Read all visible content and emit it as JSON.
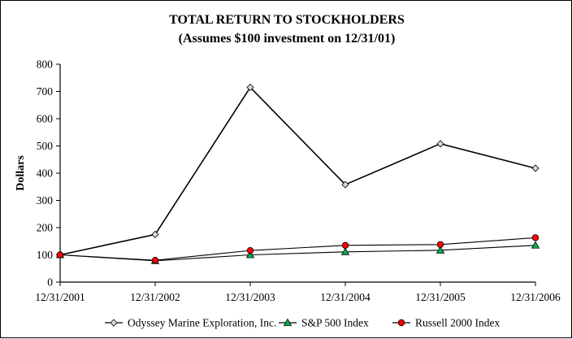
{
  "chart_data": {
    "type": "line",
    "title": "TOTAL RETURN TO STOCKHOLDERS",
    "subtitle": "(Assumes $100 investment on 12/31/01)",
    "xlabel": "",
    "ylabel": "Dollars",
    "categories": [
      "12/31/2001",
      "12/31/2002",
      "12/31/2003",
      "12/31/2004",
      "12/31/2005",
      "12/31/2006"
    ],
    "ylim": [
      0,
      800
    ],
    "yticks": [
      0,
      100,
      200,
      300,
      400,
      500,
      600,
      700,
      800
    ],
    "grid": false,
    "legend_position": "bottom",
    "series": [
      {
        "name": "Odyssey Marine Exploration, Inc.",
        "values": [
          100,
          175,
          715,
          358,
          508,
          418
        ],
        "color": "#000000",
        "marker": "diamond",
        "marker_fill": "#d9d9d9"
      },
      {
        "name": "S&P 500 Index",
        "values": [
          100,
          78,
          100,
          111,
          117,
          135
        ],
        "color": "#000000",
        "marker": "triangle",
        "marker_fill": "#00b050"
      },
      {
        "name": "Russell 2000 Index",
        "values": [
          100,
          80,
          116,
          135,
          138,
          163
        ],
        "color": "#000000",
        "marker": "circle",
        "marker_fill": "#ff0000"
      }
    ]
  }
}
